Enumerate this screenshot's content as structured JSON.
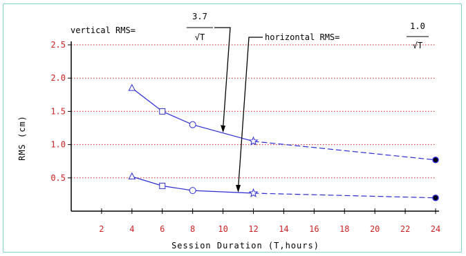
{
  "chart_data": {
    "type": "line",
    "title": "",
    "xlabel": "Session Duration (T,hours)",
    "ylabel": "RMS (cm)",
    "xlim": [
      0,
      24
    ],
    "ylim": [
      0,
      2.5
    ],
    "x_ticks": [
      2,
      4,
      6,
      8,
      10,
      12,
      14,
      16,
      18,
      20,
      22,
      24
    ],
    "y_ticks": [
      0.5,
      1.0,
      1.5,
      2.0,
      2.5
    ],
    "y_tick_labels": [
      "0.5",
      "1.0",
      "1.5",
      "2.0",
      "2.5"
    ],
    "grid": "horizontal dotted",
    "colors": {
      "series": "#2b2bd6",
      "grid": "#cc2222",
      "tick_labels": "#cc2222",
      "axes": "#000000"
    },
    "series": [
      {
        "name": "vertical",
        "x": [
          4,
          6,
          8,
          12,
          24
        ],
        "values": [
          1.85,
          1.5,
          1.3,
          1.05,
          0.77
        ],
        "markers": [
          "triangle",
          "square",
          "circle",
          "star",
          "filled-circle"
        ],
        "line_style": "solid to 12, dashed to 24"
      },
      {
        "name": "horizontal",
        "x": [
          4,
          6,
          8,
          12,
          24
        ],
        "values": [
          0.52,
          0.38,
          0.31,
          0.27,
          0.2
        ],
        "markers": [
          "triangle",
          "square",
          "circle",
          "star",
          "filled-circle"
        ],
        "line_style": "solid to 12, dashed to 24"
      }
    ],
    "annotations": [
      {
        "text": "vertical RMS=",
        "numerator": "3.7",
        "denominator": "√T",
        "points_to": [
          10,
          1.18
        ]
      },
      {
        "text": "horizontal RMS=",
        "numerator": "1.0",
        "denominator": "√T",
        "points_to": [
          11,
          0.28
        ]
      }
    ]
  }
}
